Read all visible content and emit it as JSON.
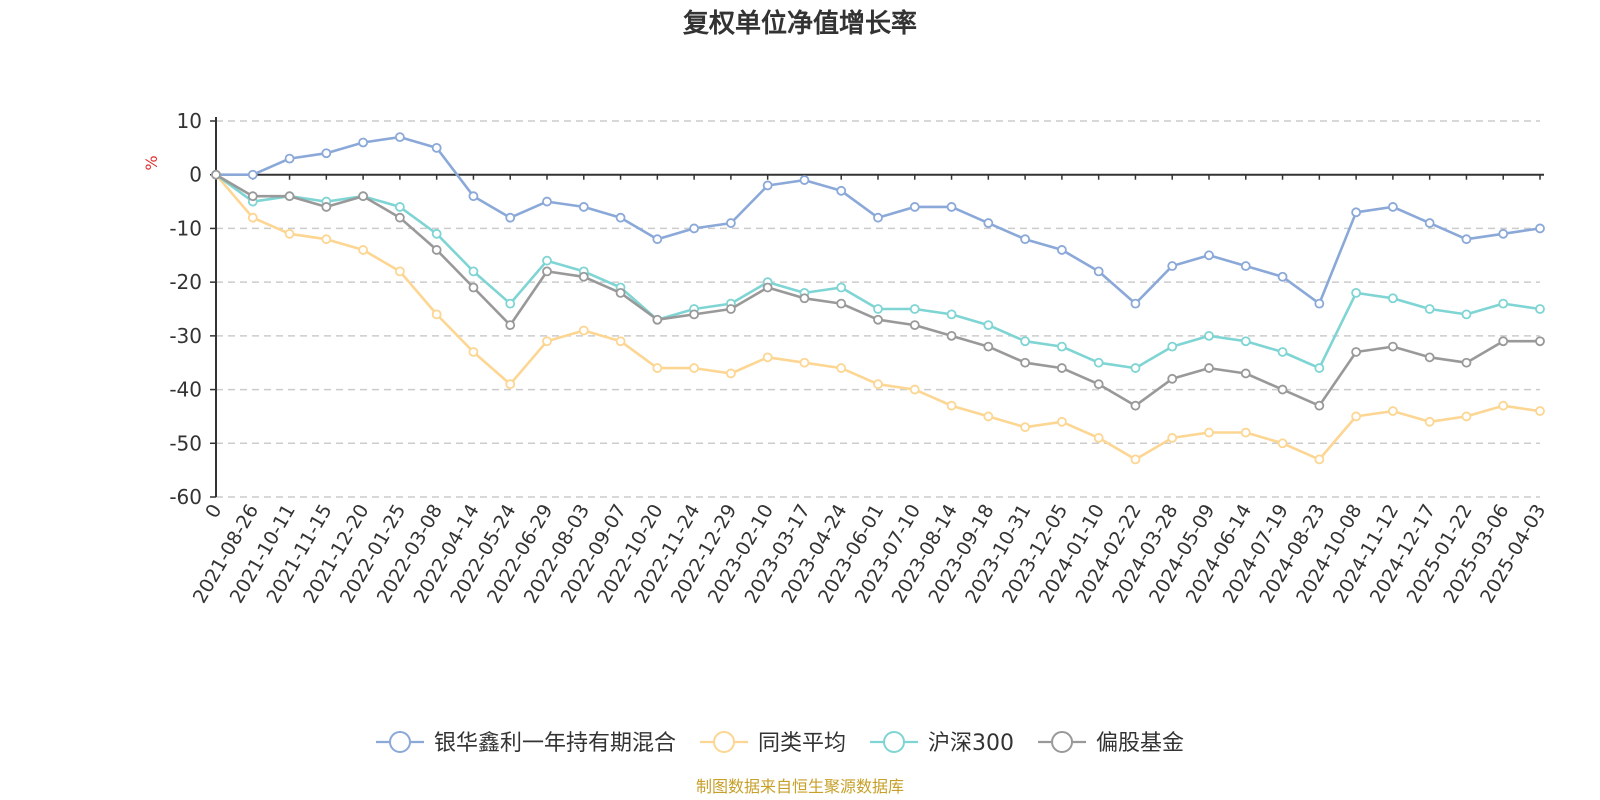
{
  "chart_data": {
    "type": "line",
    "title": "复权单位净值增长率",
    "ylabel": "%",
    "ylim": [
      -60,
      10
    ],
    "yticks": [
      10,
      0,
      -10,
      -20,
      -30,
      -40,
      -50,
      -60
    ],
    "grid": true,
    "legend_position": "bottom",
    "x": [
      "0",
      "2021-08-26",
      "2021-10-11",
      "2021-11-15",
      "2021-12-20",
      "2022-01-25",
      "2022-03-08",
      "2022-04-14",
      "2022-05-24",
      "2022-06-29",
      "2022-08-03",
      "2022-09-07",
      "2022-10-20",
      "2022-11-24",
      "2022-12-29",
      "2023-02-10",
      "2023-03-17",
      "2023-04-24",
      "2023-06-01",
      "2023-07-10",
      "2023-08-14",
      "2023-09-18",
      "2023-10-31",
      "2023-12-05",
      "2024-01-10",
      "2024-02-22",
      "2024-03-28",
      "2024-05-09",
      "2024-06-14",
      "2024-07-19",
      "2024-08-23",
      "2024-10-08",
      "2024-11-12",
      "2024-12-17",
      "2025-01-22",
      "2025-03-06",
      "2025-04-03"
    ],
    "series": [
      {
        "name": "银华鑫利一年持有期混合",
        "color": "#8aa8d8",
        "values": [
          0,
          0,
          3,
          4,
          6,
          7,
          5,
          -4,
          -8,
          -5,
          -6,
          -8,
          -12,
          -10,
          -9,
          -2,
          -1,
          -3,
          -8,
          -6,
          -6,
          -9,
          -12,
          -14,
          -18,
          -24,
          -17,
          -15,
          -17,
          -19,
          -24,
          -7,
          -6,
          -9,
          -12,
          -11,
          -10
        ]
      },
      {
        "name": "同类平均",
        "color": "#fcd692",
        "values": [
          0,
          -8,
          -11,
          -12,
          -14,
          -18,
          -26,
          -33,
          -39,
          -31,
          -29,
          -31,
          -36,
          -36,
          -37,
          -34,
          -35,
          -36,
          -39,
          -40,
          -43,
          -45,
          -47,
          -46,
          -49,
          -53,
          -49,
          -48,
          -48,
          -50,
          -53,
          -45,
          -44,
          -46,
          -45,
          -43,
          -44
        ]
      },
      {
        "name": "沪深300",
        "color": "#7fd4d4",
        "values": [
          0,
          -5,
          -4,
          -5,
          -4,
          -6,
          -11,
          -18,
          -24,
          -16,
          -18,
          -21,
          -27,
          -25,
          -24,
          -20,
          -22,
          -21,
          -25,
          -25,
          -26,
          -28,
          -31,
          -32,
          -35,
          -36,
          -32,
          -30,
          -31,
          -33,
          -36,
          -22,
          -23,
          -25,
          -26,
          -24,
          -25
        ]
      },
      {
        "name": "偏股基金",
        "color": "#999999",
        "values": [
          0,
          -4,
          -4,
          -6,
          -4,
          -8,
          -14,
          -21,
          -28,
          -18,
          -19,
          -22,
          -27,
          -26,
          -25,
          -21,
          -23,
          -24,
          -27,
          -28,
          -30,
          -32,
          -35,
          -36,
          -39,
          -43,
          -38,
          -36,
          -37,
          -40,
          -43,
          -33,
          -32,
          -34,
          -35,
          -31,
          -31
        ]
      }
    ]
  },
  "source_note": "制图数据来自恒生聚源数据库"
}
